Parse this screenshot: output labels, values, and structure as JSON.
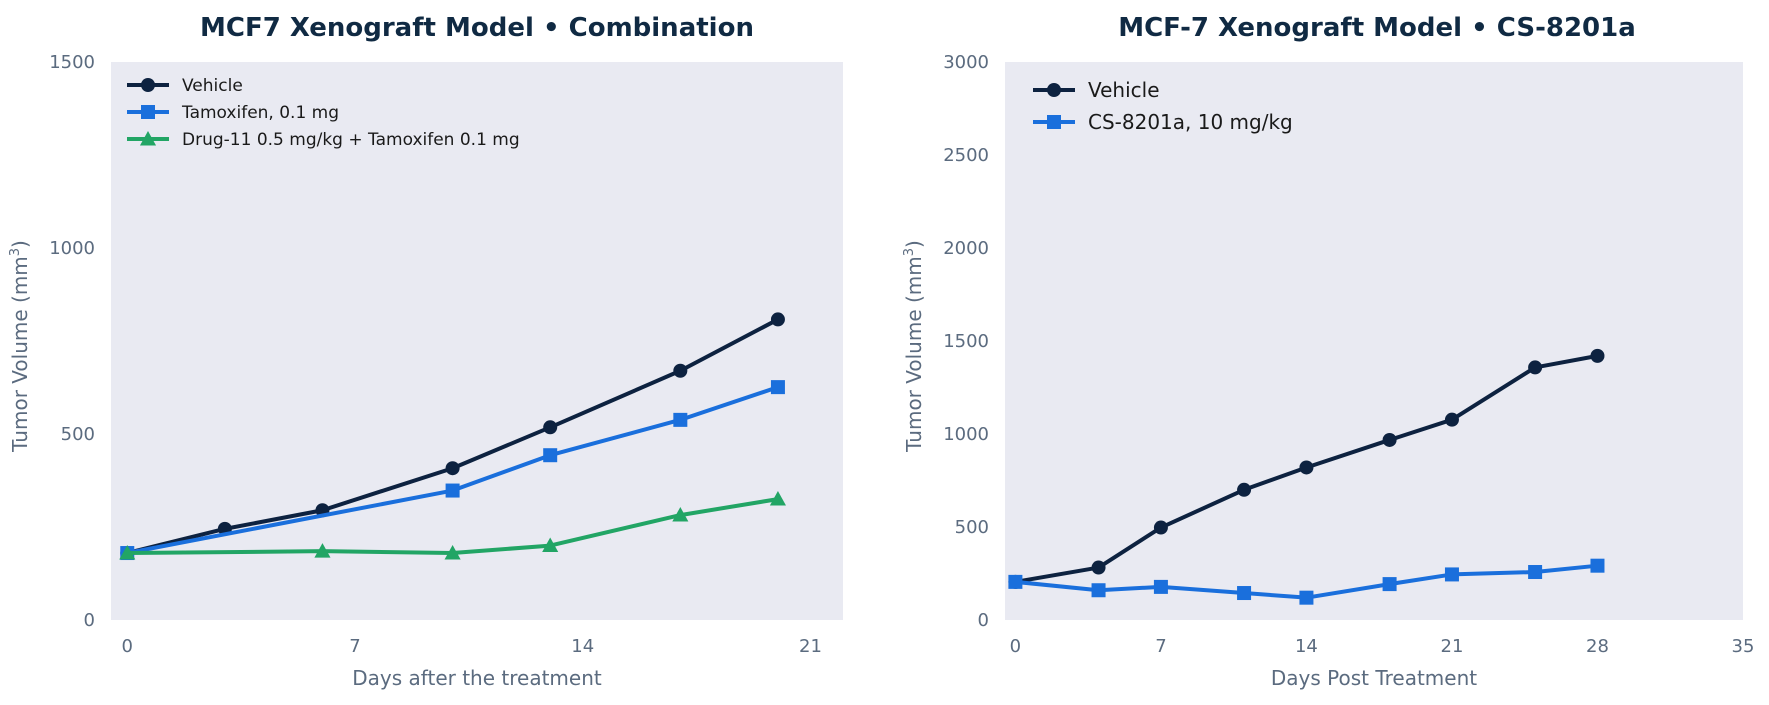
{
  "chart_data": [
    {
      "type": "line",
      "title": "MCF7 Xenograft Model  •  Combination",
      "xlabel": "Days after the treatment",
      "ylabel": "Tumor Volume (mm",
      "ylabel_sup": "3",
      "ylabel_close": ")",
      "xlim": [
        -0.5,
        22
      ],
      "ylim": [
        0,
        1500
      ],
      "xticks": [
        0,
        7,
        14,
        21
      ],
      "yticks": [
        0,
        500,
        1000,
        1500
      ],
      "grid": false,
      "legend_position": "top-left",
      "series": [
        {
          "name": "Vehicle",
          "color": "#0d2240",
          "marker": "circle",
          "x": [
            0,
            3,
            6,
            10,
            13,
            17,
            20
          ],
          "y": [
            180,
            245,
            295,
            408,
            518,
            670,
            808
          ]
        },
        {
          "name": "Tamoxifen, 0.1 mg",
          "color": "#1a6fdc",
          "marker": "square",
          "x": [
            0,
            10,
            13,
            17,
            20
          ],
          "y": [
            180,
            348,
            443,
            538,
            626
          ]
        },
        {
          "name": "Drug-11 0.5 mg/kg + Tamoxifen 0.1 mg",
          "color": "#22a565",
          "marker": "triangle",
          "x": [
            0,
            6,
            10,
            13,
            17,
            20
          ],
          "y": [
            180,
            185,
            180,
            200,
            282,
            325
          ]
        }
      ]
    },
    {
      "type": "line",
      "title": "MCF-7 Xenograft Model  •  CS-8201a",
      "xlabel": "Days Post Treatment",
      "ylabel": "Tumor Volume (mm",
      "ylabel_sup": "3",
      "ylabel_close": ")",
      "xlim": [
        -0.5,
        35
      ],
      "ylim": [
        0,
        3000
      ],
      "xticks": [
        0,
        7,
        14,
        21,
        28,
        35
      ],
      "yticks": [
        0,
        500,
        1000,
        1500,
        2000,
        2500,
        3000
      ],
      "grid": false,
      "legend_position": "top-left",
      "series": [
        {
          "name": "Vehicle",
          "color": "#0d2240",
          "marker": "circle",
          "x": [
            0,
            4,
            7,
            11,
            14,
            18,
            21,
            25,
            28
          ],
          "y": [
            205,
            282,
            497,
            700,
            820,
            968,
            1077,
            1358,
            1420
          ]
        },
        {
          "name": "CS-8201a, 10 mg/kg",
          "color": "#1a6fdc",
          "marker": "square",
          "x": [
            0,
            4,
            7,
            11,
            14,
            18,
            21,
            25,
            28
          ],
          "y": [
            205,
            160,
            178,
            145,
            120,
            193,
            245,
            258,
            292
          ]
        }
      ]
    }
  ]
}
